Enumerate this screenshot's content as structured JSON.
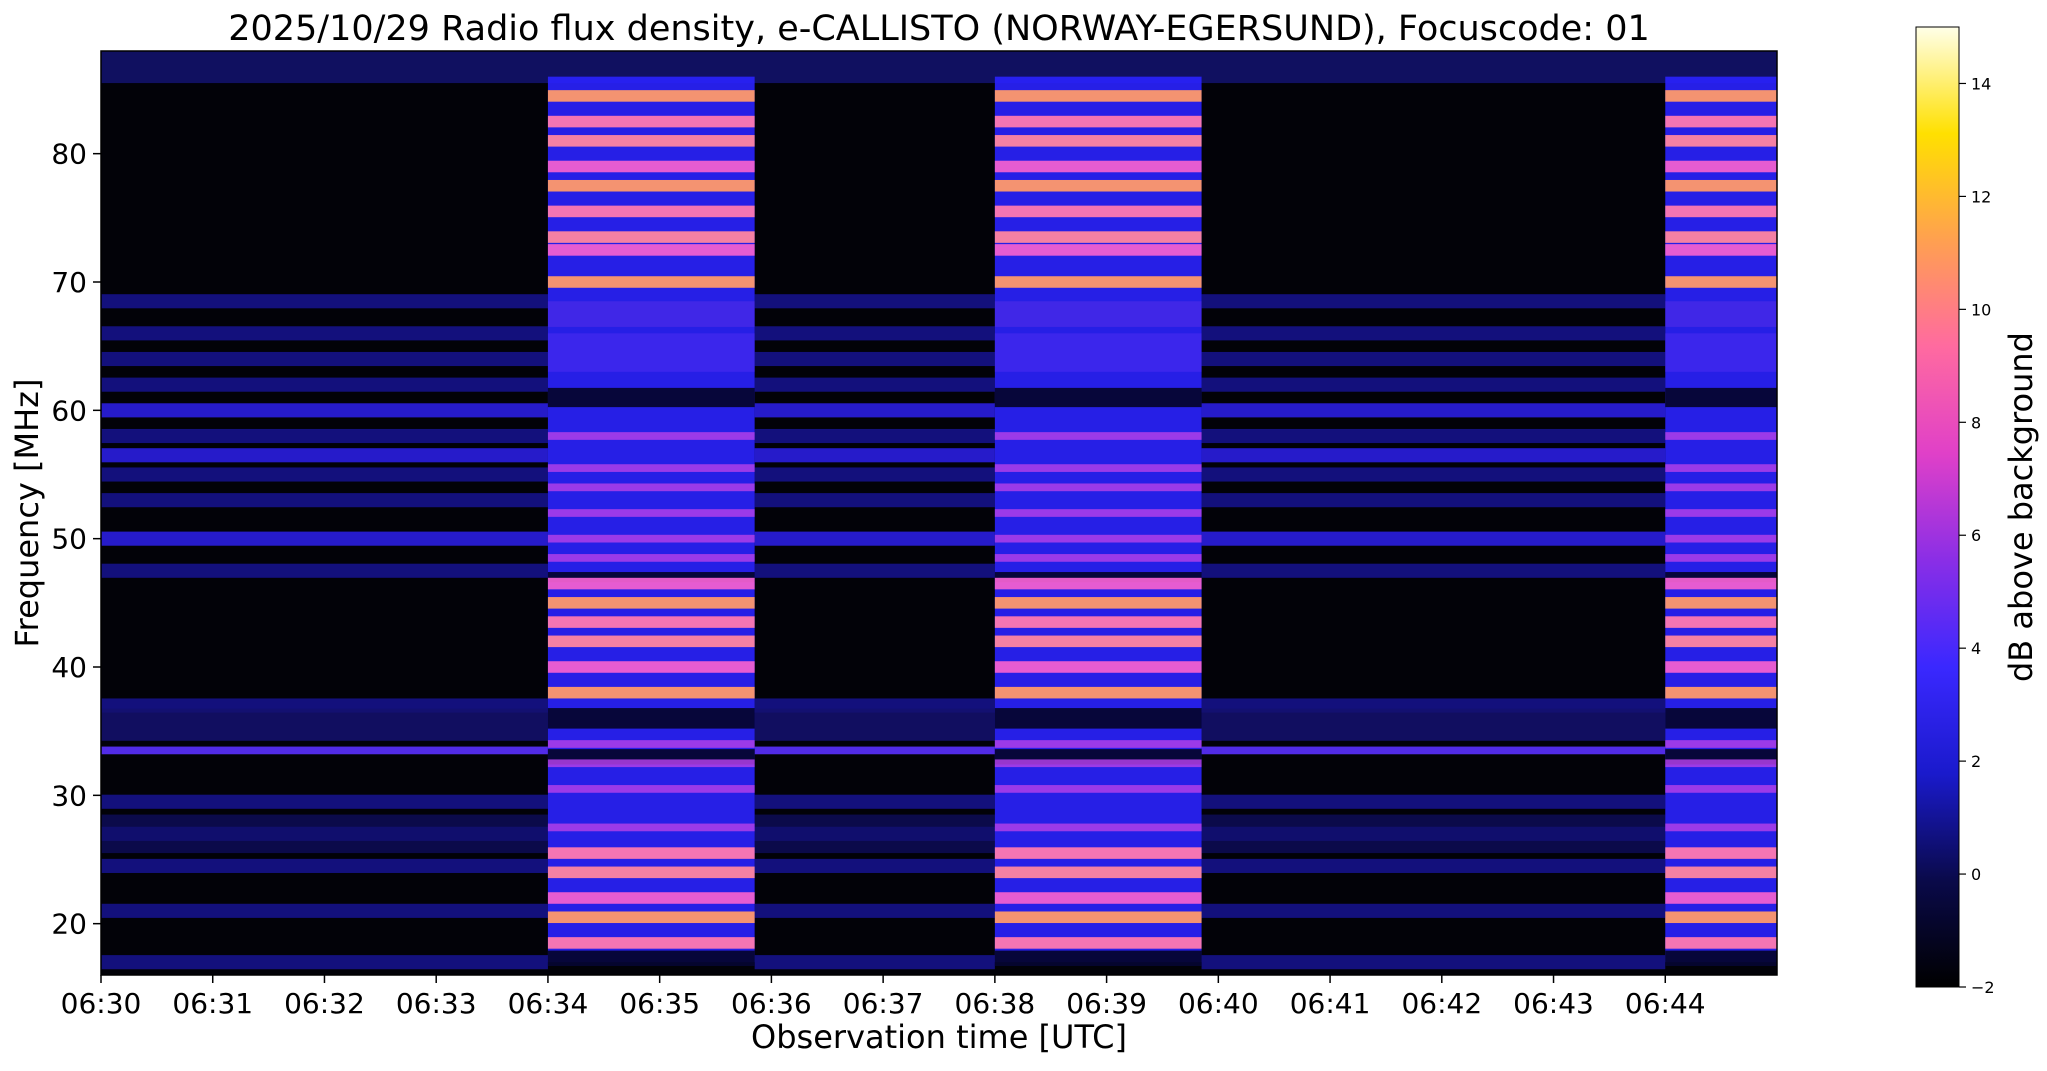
{
  "chart_data": {
    "type": "heatmap",
    "title": "2025/10/29  Radio flux density, e-CALLISTO (NORWAY-EGERSUND), Focuscode: 01",
    "xlabel": "Observation time [UTC]",
    "ylabel": "Frequency [MHz]",
    "x_start_minutes": 0,
    "x_end_minutes": 15,
    "x_ticks": [
      "06:30",
      "06:31",
      "06:32",
      "06:33",
      "06:34",
      "06:35",
      "06:36",
      "06:37",
      "06:38",
      "06:39",
      "06:40",
      "06:41",
      "06:42",
      "06:43",
      "06:44"
    ],
    "ylim": [
      16,
      88
    ],
    "y_ticks": [
      20,
      30,
      40,
      50,
      60,
      70,
      80
    ],
    "colorbar": {
      "label": "dB above background",
      "range": [
        -2,
        15
      ],
      "ticks": [
        -2,
        0,
        2,
        4,
        6,
        8,
        10,
        12,
        14
      ],
      "colormap": [
        "#000000",
        "#0a0a4a",
        "#1a1acc",
        "#3a28ff",
        "#8a2ee6",
        "#e040c8",
        "#ff6aa0",
        "#ffa050",
        "#ffe000",
        "#ffffe8"
      ]
    },
    "active_intervals_minutes": [
      [
        4.0,
        5.85
      ],
      [
        8.0,
        9.85
      ],
      [
        14.0,
        15.0
      ]
    ],
    "active_band_centers_mhz": [
      18.5,
      20.5,
      22,
      24,
      25.5,
      27.5,
      30.5,
      32.5,
      34,
      38,
      40,
      42,
      43.5,
      45,
      46.5,
      48.5,
      50,
      52,
      54,
      55.5,
      58,
      70,
      72.5,
      73.5,
      75.5,
      77.5,
      79,
      81,
      82.5,
      84.5
    ],
    "quiet_band_centers_mhz": [
      17,
      21,
      24.5,
      27,
      29.5,
      33.5,
      37,
      47.5,
      50,
      53,
      55,
      56.5,
      58,
      60,
      62,
      64,
      66,
      68.5
    ]
  }
}
